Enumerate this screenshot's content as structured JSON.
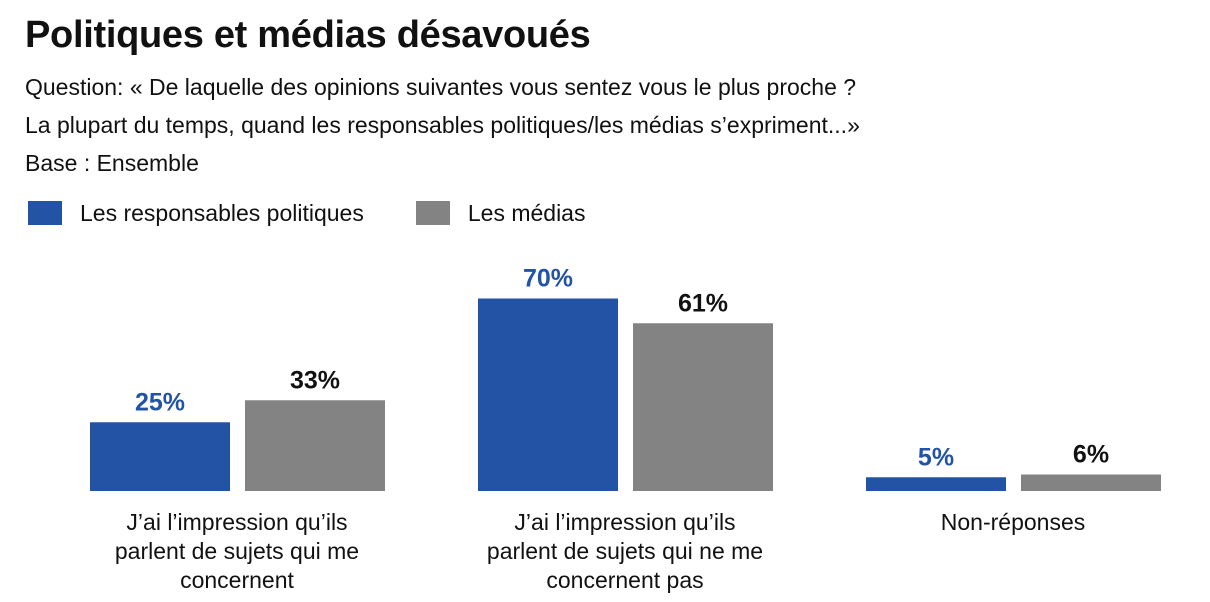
{
  "header": {
    "title": "Politiques et médias désavoués",
    "subtitle_lines": [
      "Question: « De laquelle des opinions suivantes vous sentez vous le plus proche ?",
      "La plupart du temps, quand les responsables politiques/les médias s’expriment...»",
      "Base : Ensemble"
    ]
  },
  "legend": [
    {
      "label": "Les responsables politiques",
      "color": "#2353a4"
    },
    {
      "label": "Les médias",
      "color": "#838383"
    }
  ],
  "chart_data": {
    "type": "bar",
    "title": "Politiques et médias désavoués",
    "categories": [
      "J’ai l’impression qu’ils parlent de sujets qui me concernent",
      "J’ai l’impression qu’ils parlent de sujets qui ne me concernent pas",
      "Non-réponses"
    ],
    "category_lines": [
      [
        "J’ai l’impression qu’ils",
        "parlent de sujets qui me",
        "concernent"
      ],
      [
        "J’ai l’impression qu’ils",
        "parlent de sujets qui ne me",
        "concernent pas"
      ],
      [
        "Non-réponses"
      ]
    ],
    "series": [
      {
        "name": "Les responsables politiques",
        "values": [
          25,
          70,
          5
        ],
        "labels": [
          "25%",
          "70%",
          "5%"
        ],
        "color": "#2353a4",
        "label_color": "#2353a4"
      },
      {
        "name": "Les médias",
        "values": [
          33,
          61,
          6
        ],
        "labels": [
          "33%",
          "61%",
          "6%"
        ],
        "color": "#838383",
        "label_color": "#111111"
      }
    ],
    "ylim": [
      0,
      100
    ],
    "unit": "%",
    "grid": false,
    "legend_position": "top-left"
  }
}
